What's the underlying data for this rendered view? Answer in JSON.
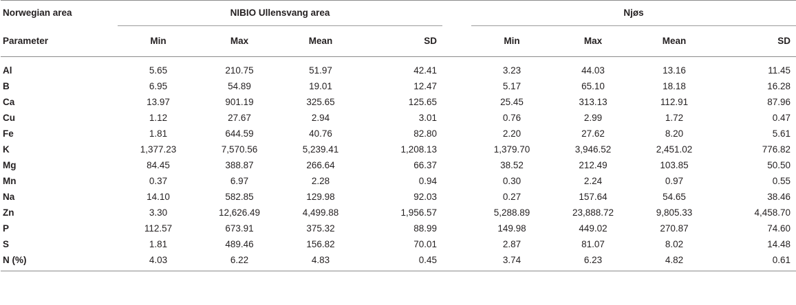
{
  "header": {
    "area_label": "Norwegian area",
    "group1": "NIBIO Ullensvang area",
    "group2": "Njøs",
    "parameter_label": "Parameter",
    "stats": [
      "Min",
      "Max",
      "Mean",
      "SD"
    ]
  },
  "rows": [
    {
      "param": "Al",
      "g1": [
        "5.65",
        "210.75",
        "51.97",
        "42.41"
      ],
      "g2": [
        "3.23",
        "44.03",
        "13.16",
        "11.45"
      ]
    },
    {
      "param": "B",
      "g1": [
        "6.95",
        "54.89",
        "19.01",
        "12.47"
      ],
      "g2": [
        "5.17",
        "65.10",
        "18.18",
        "16.28"
      ]
    },
    {
      "param": "Ca",
      "g1": [
        "13.97",
        "901.19",
        "325.65",
        "125.65"
      ],
      "g2": [
        "25.45",
        "313.13",
        "112.91",
        "87.96"
      ]
    },
    {
      "param": "Cu",
      "g1": [
        "1.12",
        "27.67",
        "2.94",
        "3.01"
      ],
      "g2": [
        "0.76",
        "2.99",
        "1.72",
        "0.47"
      ]
    },
    {
      "param": "Fe",
      "g1": [
        "1.81",
        "644.59",
        "40.76",
        "82.80"
      ],
      "g2": [
        "2.20",
        "27.62",
        "8.20",
        "5.61"
      ]
    },
    {
      "param": "K",
      "g1": [
        "1,377.23",
        "7,570.56",
        "5,239.41",
        "1,208.13"
      ],
      "g2": [
        "1,379.70",
        "3,946.52",
        "2,451.02",
        "776.82"
      ]
    },
    {
      "param": "Mg",
      "g1": [
        "84.45",
        "388.87",
        "266.64",
        "66.37"
      ],
      "g2": [
        "38.52",
        "212.49",
        "103.85",
        "50.50"
      ]
    },
    {
      "param": "Mn",
      "g1": [
        "0.37",
        "6.97",
        "2.28",
        "0.94"
      ],
      "g2": [
        "0.30",
        "2.24",
        "0.97",
        "0.55"
      ]
    },
    {
      "param": "Na",
      "g1": [
        "14.10",
        "582.85",
        "129.98",
        "92.03"
      ],
      "g2": [
        "0.27",
        "157.64",
        "54.65",
        "38.46"
      ]
    },
    {
      "param": "Zn",
      "g1": [
        "3.30",
        "12,626.49",
        "4,499.88",
        "1,956.57"
      ],
      "g2": [
        "5,288.89",
        "23,888.72",
        "9,805.33",
        "4,458.70"
      ]
    },
    {
      "param": "P",
      "g1": [
        "112.57",
        "673.91",
        "375.32",
        "88.99"
      ],
      "g2": [
        "149.98",
        "449.02",
        "270.87",
        "74.60"
      ]
    },
    {
      "param": "S",
      "g1": [
        "1.81",
        "489.46",
        "156.82",
        "70.01"
      ],
      "g2": [
        "2.87",
        "81.07",
        "8.02",
        "14.48"
      ]
    },
    {
      "param": "N (%)",
      "g1": [
        "4.03",
        "6.22",
        "4.83",
        "0.45"
      ],
      "g2": [
        "3.74",
        "6.23",
        "4.82",
        "0.61"
      ]
    }
  ]
}
